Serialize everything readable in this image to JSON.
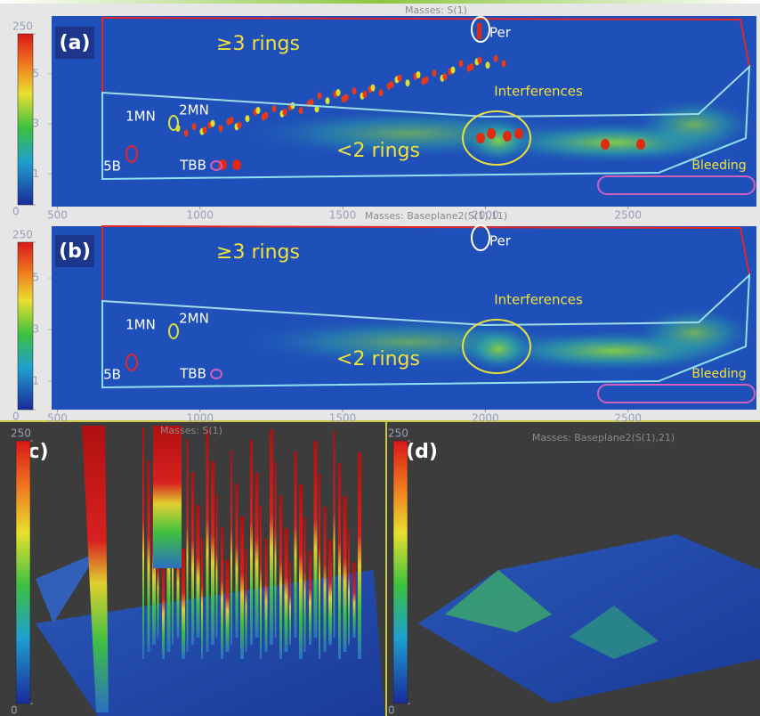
{
  "chart_data": [
    {
      "type": "heatmap",
      "label": "(a)",
      "title": "Masses: S(1)",
      "xlim": [
        480,
        2950
      ],
      "xticks": [
        500,
        1000,
        1500,
        2000,
        2500
      ],
      "ylim": [
        -0.3,
        7.3
      ],
      "yticks": [
        1,
        3,
        5
      ],
      "zlim": [
        0,
        250
      ],
      "zticks": [
        0,
        250
      ],
      "annotations": [
        "≥3 rings",
        "Per",
        "Interferences",
        "1MN",
        "2MN",
        "<2 rings",
        "5B",
        "TBB",
        "Bleeding"
      ]
    },
    {
      "type": "heatmap",
      "label": "(b)",
      "title": "Masses: Baseplane2(S(1),11)",
      "xlim": [
        480,
        2950
      ],
      "xticks": [
        500,
        1000,
        1500,
        2000,
        2500
      ],
      "ylim": [
        -0.1,
        7.0
      ],
      "yticks": [
        1,
        3,
        5
      ],
      "zlim": [
        0,
        250
      ],
      "zticks": [
        0,
        250
      ],
      "annotations": [
        "≥3 rings",
        "Per",
        "Interferences",
        "1MN",
        "2MN",
        "<2 rings",
        "5B",
        "TBB",
        "Bleeding"
      ]
    },
    {
      "type": "surface",
      "label": "(c)",
      "title": "Masses: S(1)",
      "zlim": [
        0,
        250
      ],
      "zticks": [
        0,
        250
      ]
    },
    {
      "type": "surface",
      "label": "(d)",
      "title": "Masses: Baseplane2(S(1),21)",
      "zlim": [
        0,
        250
      ],
      "zticks": [
        0,
        250
      ]
    }
  ]
}
